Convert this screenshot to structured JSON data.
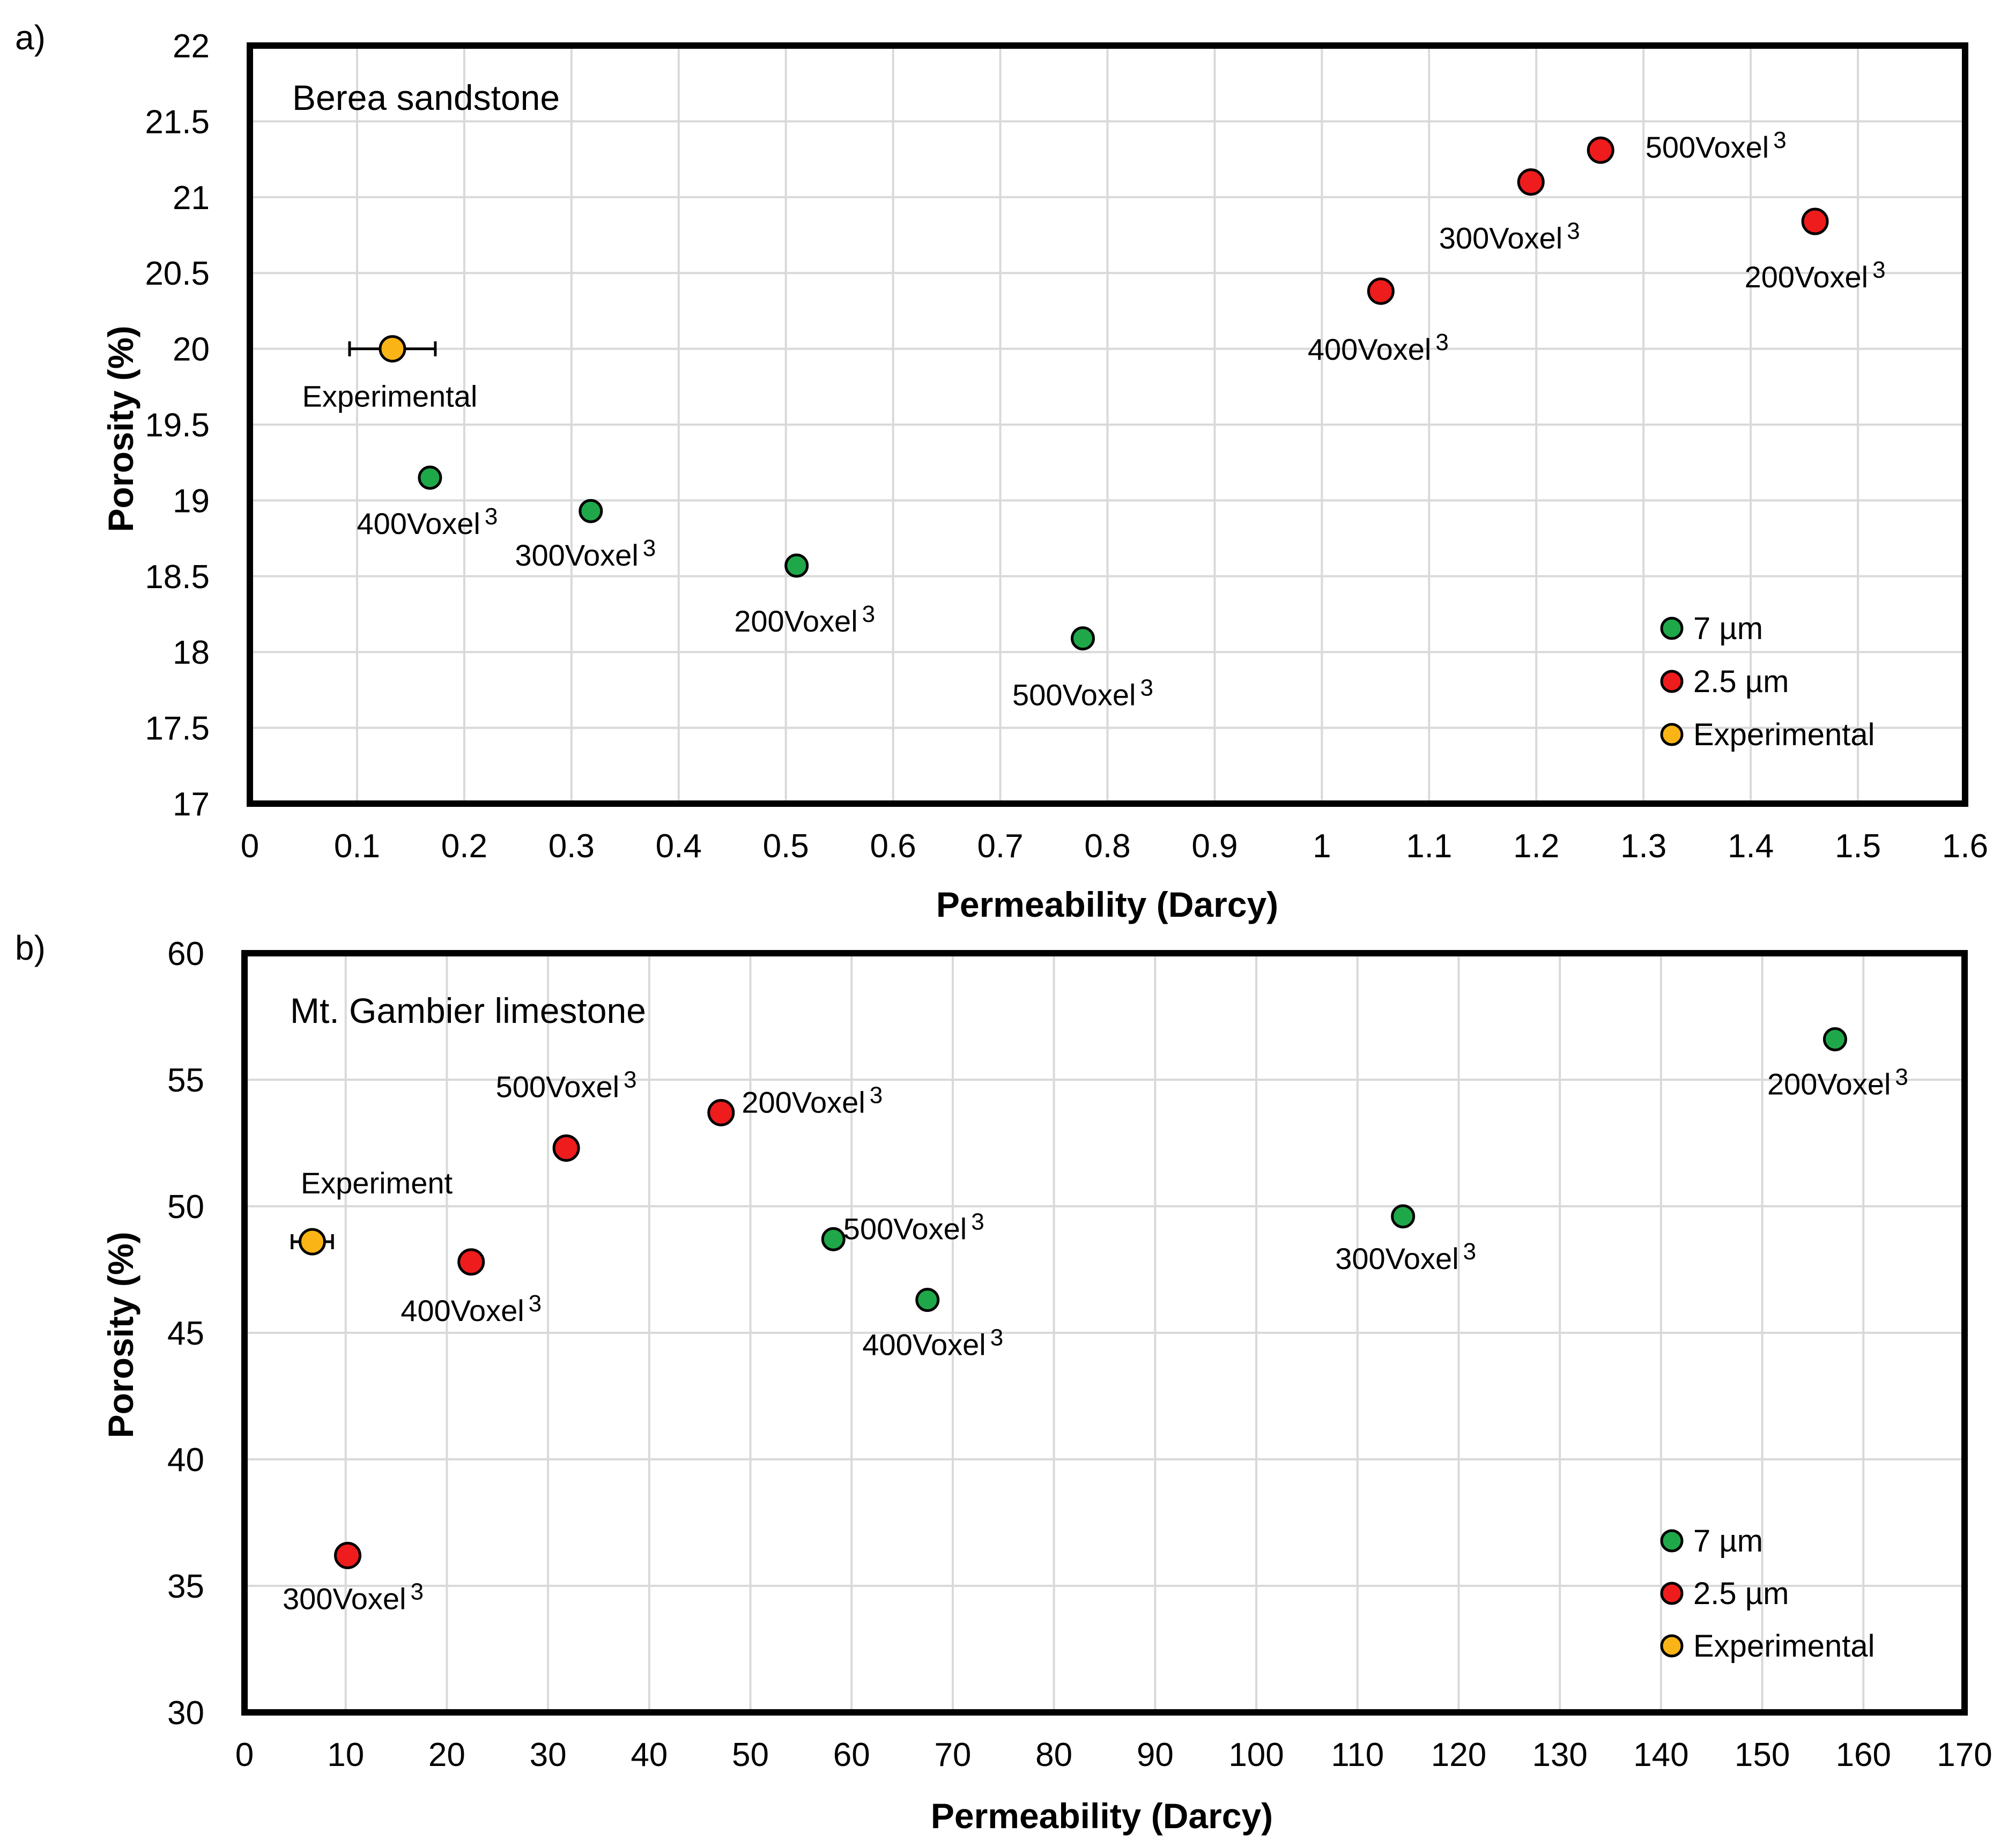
{
  "chart_data": [
    {
      "type": "scatter",
      "panel_label": "a)",
      "title": "Berea sandstone",
      "xlabel": "Permeability (Darcy)",
      "ylabel": "Porosity (%)",
      "xlim": [
        0,
        1.6
      ],
      "ylim": [
        17,
        22
      ],
      "xticks": [
        "0",
        "0.1",
        "0.2",
        "0.3",
        "0.4",
        "0.5",
        "0.6",
        "0.7",
        "0.8",
        "0.9",
        "1",
        "1.1",
        "1.2",
        "1.3",
        "1.4",
        "1.5",
        "1.6"
      ],
      "yticks": [
        "17",
        "17.5",
        "18",
        "18.5",
        "19",
        "19.5",
        "20",
        "20.5",
        "21",
        "21.5",
        "22"
      ],
      "grid": true,
      "legend_position": "bottom-right",
      "series": [
        {
          "name": "7 µm",
          "color": "#1fa84a",
          "points": [
            {
              "x": 0.168,
              "y": 19.15,
              "label": "400Voxel",
              "sup": "3"
            },
            {
              "x": 0.318,
              "y": 18.93,
              "label": "300Voxel",
              "sup": "3"
            },
            {
              "x": 0.51,
              "y": 18.57,
              "label": "200Voxel",
              "sup": "3"
            },
            {
              "x": 0.777,
              "y": 18.09,
              "label": "500Voxel",
              "sup": "3"
            }
          ]
        },
        {
          "name": "2.5 µm",
          "color": "#ee1c1c",
          "points": [
            {
              "x": 1.055,
              "y": 20.38,
              "label": "400Voxel",
              "sup": "3"
            },
            {
              "x": 1.195,
              "y": 21.1,
              "label": "300Voxel",
              "sup": "3"
            },
            {
              "x": 1.26,
              "y": 21.31,
              "label": "500Voxel",
              "sup": "3"
            },
            {
              "x": 1.46,
              "y": 20.84,
              "label": "200Voxel",
              "sup": "3"
            }
          ]
        },
        {
          "name": "Experimental",
          "color": "#fbb416",
          "points": [
            {
              "x": 0.133,
              "y": 20.0,
              "label": "Experimental",
              "sup": "",
              "xerr": [
                0.093,
                0.173
              ]
            }
          ]
        }
      ]
    },
    {
      "type": "scatter",
      "panel_label": "b)",
      "title": "Mt. Gambier limestone",
      "xlabel": "Permeability (Darcy)",
      "ylabel": "Porosity (%)",
      "xlim": [
        0,
        170
      ],
      "ylim": [
        30,
        60
      ],
      "xticks": [
        "0",
        "10",
        "20",
        "30",
        "40",
        "50",
        "60",
        "70",
        "80",
        "90",
        "100",
        "110",
        "120",
        "130",
        "140",
        "150",
        "160",
        "170"
      ],
      "yticks": [
        "30",
        "35",
        "40",
        "45",
        "50",
        "55",
        "60"
      ],
      "grid": true,
      "legend_position": "bottom-right",
      "series": [
        {
          "name": "7 µm",
          "color": "#1fa84a",
          "points": [
            {
              "x": 58.2,
              "y": 48.7,
              "label": "500Voxel",
              "sup": "3"
            },
            {
              "x": 67.5,
              "y": 46.3,
              "label": "400Voxel",
              "sup": "3"
            },
            {
              "x": 114.5,
              "y": 49.6,
              "label": "300Voxel",
              "sup": "3"
            },
            {
              "x": 157.2,
              "y": 56.6,
              "label": "200Voxel",
              "sup": "3"
            }
          ]
        },
        {
          "name": "2.5 µm",
          "color": "#ee1c1c",
          "points": [
            {
              "x": 10.2,
              "y": 36.2,
              "label": "300Voxel",
              "sup": "3"
            },
            {
              "x": 22.4,
              "y": 47.8,
              "label": "400Voxel",
              "sup": "3"
            },
            {
              "x": 31.8,
              "y": 52.3,
              "label": "500Voxel",
              "sup": "3"
            },
            {
              "x": 47.1,
              "y": 53.7,
              "label": "200Voxel",
              "sup": "3"
            }
          ]
        },
        {
          "name": "Experimental",
          "color": "#fbb416",
          "points": [
            {
              "x": 6.7,
              "y": 48.6,
              "label": "Experiment",
              "sup": "",
              "xerr": [
                4.7,
                8.7
              ]
            }
          ]
        }
      ]
    }
  ]
}
